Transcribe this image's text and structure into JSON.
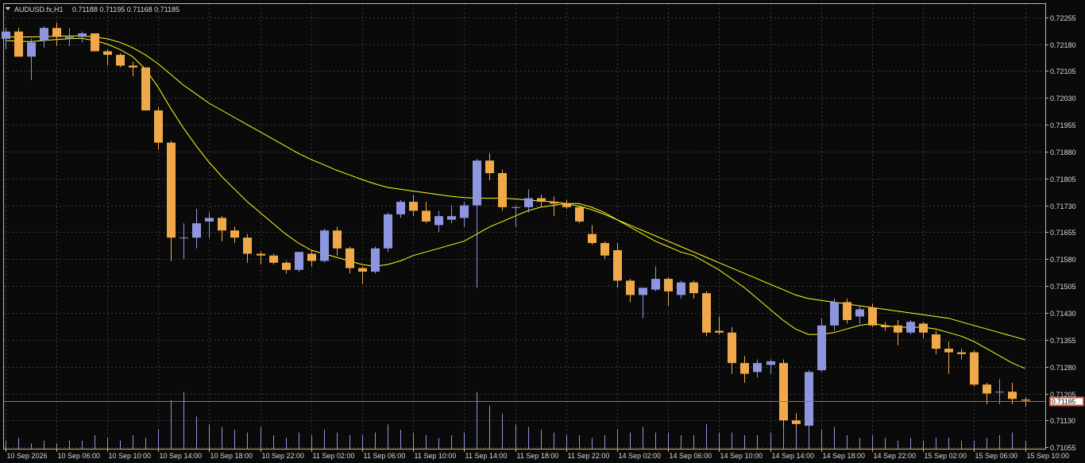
{
  "header": {
    "symbol_label": "AUDUSD.fx,H1",
    "ohlc_label": "0.71188 0.71195 0.71168 0.71185"
  },
  "price_tag": "0.71185",
  "colors": {
    "background": "#0a0a0a",
    "frame": "#d9b27a",
    "grid": "#3a3a3a",
    "text": "#d9d9d9",
    "bull": "#8f96e0",
    "bear": "#f0a94a",
    "volume": "#8f96e0",
    "ma": "#ffff1a",
    "price_line": "#e0533a"
  },
  "chart_data": {
    "type": "candlestick",
    "symbol": "AUDUSD.fx",
    "timeframe": "H1",
    "ylim": [
      0.71051,
      0.72292
    ],
    "y_ticks": [
      "0.72255",
      "0.72180",
      "0.72105",
      "0.72030",
      "0.71955",
      "0.71880",
      "0.71805",
      "0.71730",
      "0.71655",
      "0.71580",
      "0.71505",
      "0.71430",
      "0.71355",
      "0.71280",
      "0.71205",
      "0.71130",
      "0.71055"
    ],
    "x_ticks": [
      "10 Sep 2026",
      "10 Sep 06:00",
      "10 Sep 10:00",
      "10 Sep 14:00",
      "10 Sep 18:00",
      "10 Sep 22:00",
      "11 Sep 02:00",
      "11 Sep 06:00",
      "11 Sep 10:00",
      "11 Sep 14:00",
      "11 Sep 18:00",
      "11 Sep 22:00",
      "14 Sep 02:00",
      "14 Sep 06:00",
      "14 Sep 10:00",
      "14 Sep 14:00",
      "14 Sep 18:00",
      "14 Sep 22:00",
      "15 Sep 02:00",
      "15 Sep 06:00",
      "15 Sep 10:00"
    ],
    "candles": [
      {
        "o": 0.72195,
        "h": 0.72225,
        "l": 0.72165,
        "c": 0.72215
      },
      {
        "o": 0.72215,
        "h": 0.72225,
        "l": 0.72145,
        "c": 0.72145
      },
      {
        "o": 0.72145,
        "h": 0.72195,
        "l": 0.7208,
        "c": 0.72185
      },
      {
        "o": 0.7219,
        "h": 0.7223,
        "l": 0.7217,
        "c": 0.72225
      },
      {
        "o": 0.72225,
        "h": 0.7224,
        "l": 0.72175,
        "c": 0.722
      },
      {
        "o": 0.72195,
        "h": 0.72225,
        "l": 0.72175,
        "c": 0.722
      },
      {
        "o": 0.722,
        "h": 0.72215,
        "l": 0.72185,
        "c": 0.7221
      },
      {
        "o": 0.7221,
        "h": 0.7221,
        "l": 0.7216,
        "c": 0.7216
      },
      {
        "o": 0.7216,
        "h": 0.72165,
        "l": 0.7212,
        "c": 0.7215
      },
      {
        "o": 0.7215,
        "h": 0.72155,
        "l": 0.72115,
        "c": 0.7212
      },
      {
        "o": 0.7212,
        "h": 0.7213,
        "l": 0.7209,
        "c": 0.72115
      },
      {
        "o": 0.72115,
        "h": 0.72115,
        "l": 0.71995,
        "c": 0.71995
      },
      {
        "o": 0.71995,
        "h": 0.72005,
        "l": 0.71885,
        "c": 0.71905
      },
      {
        "o": 0.71905,
        "h": 0.7191,
        "l": 0.71575,
        "c": 0.7164
      },
      {
        "o": 0.7164,
        "h": 0.7168,
        "l": 0.7158,
        "c": 0.7164
      },
      {
        "o": 0.7164,
        "h": 0.7172,
        "l": 0.7161,
        "c": 0.7168
      },
      {
        "o": 0.71685,
        "h": 0.7171,
        "l": 0.7164,
        "c": 0.71695
      },
      {
        "o": 0.71695,
        "h": 0.717,
        "l": 0.7163,
        "c": 0.7166
      },
      {
        "o": 0.7166,
        "h": 0.7167,
        "l": 0.71625,
        "c": 0.7164
      },
      {
        "o": 0.7164,
        "h": 0.7165,
        "l": 0.7157,
        "c": 0.71595
      },
      {
        "o": 0.71595,
        "h": 0.716,
        "l": 0.71565,
        "c": 0.7159
      },
      {
        "o": 0.7159,
        "h": 0.71595,
        "l": 0.71565,
        "c": 0.7157
      },
      {
        "o": 0.7157,
        "h": 0.71575,
        "l": 0.7154,
        "c": 0.7155
      },
      {
        "o": 0.7155,
        "h": 0.716,
        "l": 0.71545,
        "c": 0.716
      },
      {
        "o": 0.71595,
        "h": 0.71605,
        "l": 0.7156,
        "c": 0.71575
      },
      {
        "o": 0.71575,
        "h": 0.71665,
        "l": 0.7157,
        "c": 0.7166
      },
      {
        "o": 0.7166,
        "h": 0.7167,
        "l": 0.7159,
        "c": 0.7161
      },
      {
        "o": 0.7161,
        "h": 0.71615,
        "l": 0.7154,
        "c": 0.71555
      },
      {
        "o": 0.71555,
        "h": 0.7156,
        "l": 0.7151,
        "c": 0.71545
      },
      {
        "o": 0.71545,
        "h": 0.71615,
        "l": 0.7154,
        "c": 0.7161
      },
      {
        "o": 0.7161,
        "h": 0.7171,
        "l": 0.716,
        "c": 0.71705
      },
      {
        "o": 0.71705,
        "h": 0.71745,
        "l": 0.71695,
        "c": 0.7174
      },
      {
        "o": 0.7174,
        "h": 0.7176,
        "l": 0.717,
        "c": 0.71715
      },
      {
        "o": 0.71715,
        "h": 0.7174,
        "l": 0.7168,
        "c": 0.71685
      },
      {
        "o": 0.71675,
        "h": 0.71715,
        "l": 0.71655,
        "c": 0.717
      },
      {
        "o": 0.7169,
        "h": 0.7173,
        "l": 0.7168,
        "c": 0.717
      },
      {
        "o": 0.71695,
        "h": 0.7174,
        "l": 0.7167,
        "c": 0.7173
      },
      {
        "o": 0.7173,
        "h": 0.7186,
        "l": 0.715,
        "c": 0.71855
      },
      {
        "o": 0.71855,
        "h": 0.71875,
        "l": 0.718,
        "c": 0.7182
      },
      {
        "o": 0.7182,
        "h": 0.7183,
        "l": 0.71715,
        "c": 0.71725
      },
      {
        "o": 0.71725,
        "h": 0.7173,
        "l": 0.7167,
        "c": 0.71725
      },
      {
        "o": 0.71725,
        "h": 0.71775,
        "l": 0.7171,
        "c": 0.7175
      },
      {
        "o": 0.7175,
        "h": 0.7176,
        "l": 0.71725,
        "c": 0.7174
      },
      {
        "o": 0.7174,
        "h": 0.71755,
        "l": 0.717,
        "c": 0.71735
      },
      {
        "o": 0.71735,
        "h": 0.71745,
        "l": 0.7172,
        "c": 0.71725
      },
      {
        "o": 0.71725,
        "h": 0.7173,
        "l": 0.7168,
        "c": 0.71685
      },
      {
        "o": 0.7165,
        "h": 0.71675,
        "l": 0.7162,
        "c": 0.71625
      },
      {
        "o": 0.71625,
        "h": 0.7163,
        "l": 0.7158,
        "c": 0.7159
      },
      {
        "o": 0.71605,
        "h": 0.71625,
        "l": 0.715,
        "c": 0.7152
      },
      {
        "o": 0.7152,
        "h": 0.71525,
        "l": 0.7146,
        "c": 0.7148
      },
      {
        "o": 0.7148,
        "h": 0.715,
        "l": 0.71415,
        "c": 0.715
      },
      {
        "o": 0.71495,
        "h": 0.7156,
        "l": 0.7149,
        "c": 0.71525
      },
      {
        "o": 0.71525,
        "h": 0.7153,
        "l": 0.7145,
        "c": 0.7149
      },
      {
        "o": 0.7148,
        "h": 0.7152,
        "l": 0.7147,
        "c": 0.71515
      },
      {
        "o": 0.71515,
        "h": 0.7152,
        "l": 0.7147,
        "c": 0.71485
      },
      {
        "o": 0.71485,
        "h": 0.7149,
        "l": 0.71365,
        "c": 0.71375
      },
      {
        "o": 0.7138,
        "h": 0.7142,
        "l": 0.7137,
        "c": 0.71375
      },
      {
        "o": 0.71375,
        "h": 0.7139,
        "l": 0.7126,
        "c": 0.7129
      },
      {
        "o": 0.7129,
        "h": 0.7131,
        "l": 0.71235,
        "c": 0.7126
      },
      {
        "o": 0.71265,
        "h": 0.713,
        "l": 0.7125,
        "c": 0.7129
      },
      {
        "o": 0.71285,
        "h": 0.713,
        "l": 0.7126,
        "c": 0.71295
      },
      {
        "o": 0.7129,
        "h": 0.713,
        "l": 0.7111,
        "c": 0.7113
      },
      {
        "o": 0.7113,
        "h": 0.7115,
        "l": 0.7111,
        "c": 0.7112
      },
      {
        "o": 0.71115,
        "h": 0.7127,
        "l": 0.7111,
        "c": 0.71265
      },
      {
        "o": 0.7127,
        "h": 0.71415,
        "l": 0.71265,
        "c": 0.71395
      },
      {
        "o": 0.71395,
        "h": 0.7147,
        "l": 0.7138,
        "c": 0.7146
      },
      {
        "o": 0.7146,
        "h": 0.7147,
        "l": 0.714,
        "c": 0.7141
      },
      {
        "o": 0.7142,
        "h": 0.7145,
        "l": 0.714,
        "c": 0.7144
      },
      {
        "o": 0.71445,
        "h": 0.71455,
        "l": 0.7139,
        "c": 0.71395
      },
      {
        "o": 0.71395,
        "h": 0.71405,
        "l": 0.7138,
        "c": 0.7139
      },
      {
        "o": 0.71395,
        "h": 0.7141,
        "l": 0.7134,
        "c": 0.71375
      },
      {
        "o": 0.71375,
        "h": 0.7141,
        "l": 0.7137,
        "c": 0.71405
      },
      {
        "o": 0.714,
        "h": 0.71405,
        "l": 0.7136,
        "c": 0.71375
      },
      {
        "o": 0.7137,
        "h": 0.7138,
        "l": 0.71315,
        "c": 0.7133
      },
      {
        "o": 0.7133,
        "h": 0.7135,
        "l": 0.7126,
        "c": 0.7132
      },
      {
        "o": 0.7132,
        "h": 0.7133,
        "l": 0.713,
        "c": 0.71315
      },
      {
        "o": 0.7132,
        "h": 0.71325,
        "l": 0.71225,
        "c": 0.7123
      },
      {
        "o": 0.7123,
        "h": 0.71235,
        "l": 0.71175,
        "c": 0.71205
      },
      {
        "o": 0.7121,
        "h": 0.71245,
        "l": 0.71175,
        "c": 0.7121
      },
      {
        "o": 0.7121,
        "h": 0.71235,
        "l": 0.71175,
        "c": 0.7119
      },
      {
        "o": 0.71188,
        "h": 0.71195,
        "l": 0.71168,
        "c": 0.71185
      }
    ],
    "volume_rel": [
      0.3,
      0.4,
      0.2,
      0.3,
      0.2,
      0.3,
      0.3,
      0.5,
      0.4,
      0.3,
      0.5,
      0.4,
      0.7,
      1.8,
      2.1,
      1.2,
      0.9,
      0.8,
      0.7,
      0.6,
      0.8,
      0.5,
      0.4,
      0.6,
      0.5,
      0.7,
      0.6,
      0.5,
      0.5,
      0.6,
      0.9,
      0.7,
      0.6,
      0.5,
      0.4,
      0.5,
      0.6,
      2.1,
      1.6,
      1.3,
      0.9,
      0.8,
      0.7,
      0.6,
      0.5,
      0.5,
      0.4,
      0.5,
      0.7,
      0.6,
      0.8,
      0.6,
      0.6,
      0.5,
      0.5,
      0.9,
      0.6,
      0.6,
      0.5,
      0.5,
      0.6,
      0.8,
      0.9,
      1.0,
      0.7,
      0.8,
      0.5,
      0.4,
      0.5,
      0.4,
      0.3,
      0.4,
      0.3,
      0.4,
      0.4,
      0.3,
      0.3,
      0.4,
      0.5,
      0.6,
      0.3
    ],
    "ma_fast": [
      0.7219,
      0.72188,
      0.72187,
      0.7219,
      0.72193,
      0.72195,
      0.72196,
      0.7219,
      0.7218,
      0.72165,
      0.72145,
      0.7211,
      0.7206,
      0.72,
      0.71945,
      0.71895,
      0.7185,
      0.7181,
      0.71775,
      0.7174,
      0.7171,
      0.7168,
      0.7165,
      0.71625,
      0.71605,
      0.71595,
      0.71585,
      0.71575,
      0.71565,
      0.7156,
      0.71565,
      0.71575,
      0.7159,
      0.716,
      0.7161,
      0.7162,
      0.7163,
      0.7165,
      0.7167,
      0.71685,
      0.717,
      0.71715,
      0.71725,
      0.7173,
      0.71735,
      0.71735,
      0.71725,
      0.7171,
      0.7169,
      0.7167,
      0.7165,
      0.7163,
      0.71615,
      0.716,
      0.7159,
      0.7157,
      0.7155,
      0.71525,
      0.715,
      0.7147,
      0.7144,
      0.7141,
      0.71385,
      0.7137,
      0.7137,
      0.71375,
      0.71385,
      0.71395,
      0.714,
      0.71395,
      0.7139,
      0.7139,
      0.7139,
      0.71385,
      0.71375,
      0.71365,
      0.7135,
      0.7133,
      0.7131,
      0.7129,
      0.71275
    ],
    "ma_slow": [
      0.722,
      0.722,
      0.722,
      0.72201,
      0.72202,
      0.72203,
      0.72203,
      0.722,
      0.72195,
      0.72185,
      0.7217,
      0.7215,
      0.72125,
      0.72095,
      0.72065,
      0.7204,
      0.72015,
      0.71995,
      0.71975,
      0.71955,
      0.71935,
      0.71915,
      0.71895,
      0.71875,
      0.71858,
      0.71843,
      0.71828,
      0.71815,
      0.71802,
      0.7179,
      0.7178,
      0.71775,
      0.7177,
      0.71765,
      0.7176,
      0.71755,
      0.71752,
      0.7175,
      0.7175,
      0.7175,
      0.71748,
      0.71745,
      0.71742,
      0.7174,
      0.71735,
      0.71728,
      0.71718,
      0.71705,
      0.7169,
      0.71675,
      0.7166,
      0.71645,
      0.7163,
      0.71615,
      0.716,
      0.71585,
      0.7157,
      0.71555,
      0.7154,
      0.71525,
      0.7151,
      0.71495,
      0.7148,
      0.7147,
      0.71465,
      0.7146,
      0.71455,
      0.7145,
      0.71445,
      0.7144,
      0.71435,
      0.7143,
      0.71425,
      0.7142,
      0.71415,
      0.71405,
      0.71395,
      0.71385,
      0.71375,
      0.71365,
      0.71355
    ]
  }
}
